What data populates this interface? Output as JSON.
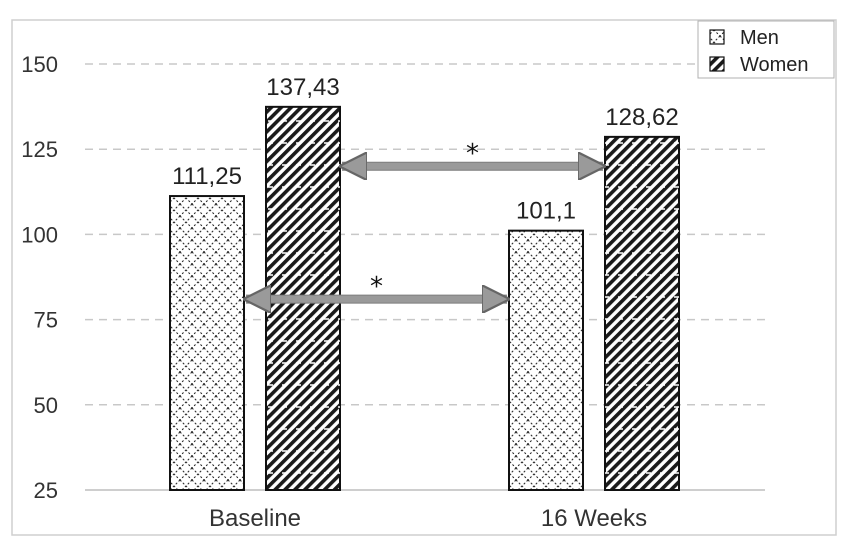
{
  "chart_data": {
    "type": "bar",
    "categories": [
      "Baseline",
      "16 Weeks"
    ],
    "series": [
      {
        "name": "Men",
        "values": [
          111.25,
          101.1
        ],
        "labels": [
          "111,25",
          "101,1"
        ],
        "pattern": "crosshatch"
      },
      {
        "name": "Women",
        "values": [
          137.43,
          128.62
        ],
        "labels": [
          "137,43",
          "128,62"
        ],
        "pattern": "diagonal"
      }
    ],
    "ylim": [
      25,
      150
    ],
    "yticks": [
      25,
      50,
      75,
      100,
      125,
      150
    ],
    "grid": true,
    "legend": "top-right",
    "annotations": [
      {
        "text": "*",
        "from": {
          "series": "Women",
          "category": "Baseline"
        },
        "to": {
          "series": "Women",
          "category": "16 Weeks"
        },
        "y": 120
      },
      {
        "text": "*",
        "from": {
          "series": "Men",
          "category": "Baseline"
        },
        "to": {
          "series": "Men",
          "category": "16 Weeks"
        },
        "y": 81
      }
    ],
    "colors": {
      "bar_outline": "#111111",
      "grid": "#c8c8c8",
      "arrow": "#9a9a9a",
      "frame": "#cfcfcf"
    }
  }
}
